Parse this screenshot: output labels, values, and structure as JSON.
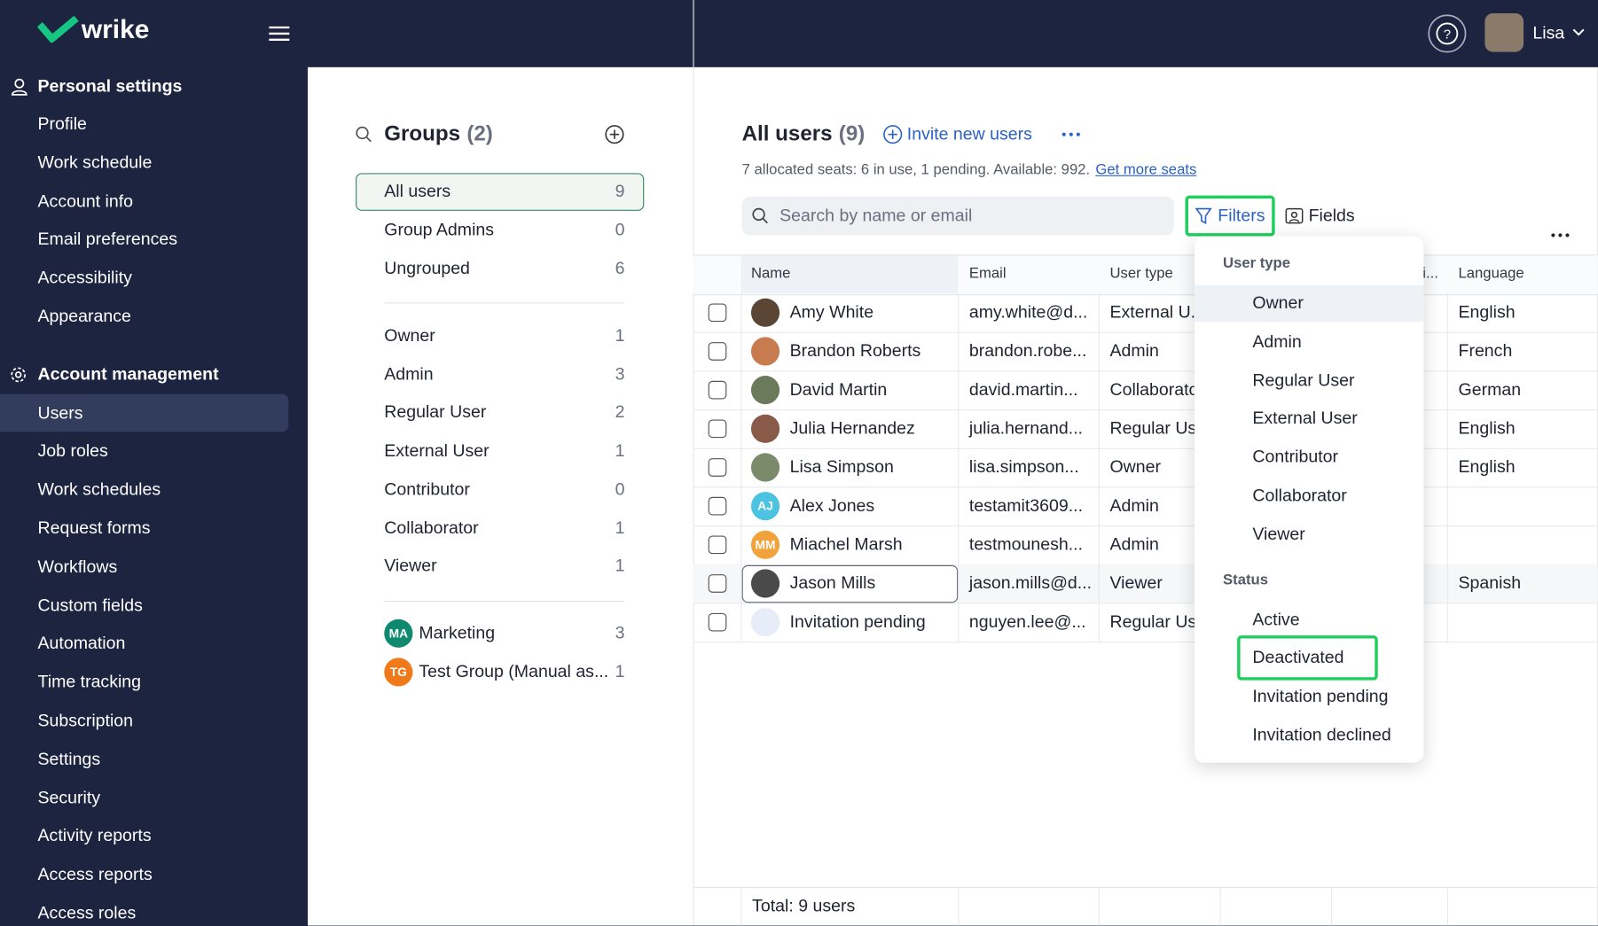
{
  "header": {
    "logo": "wrike",
    "user": "Lisa"
  },
  "sidebar": {
    "personal_title": "Personal settings",
    "personal_items": [
      "Profile",
      "Work schedule",
      "Account info",
      "Email preferences",
      "Accessibility",
      "Appearance"
    ],
    "account_title": "Account management",
    "account_items": [
      "Users",
      "Job roles",
      "Work schedules",
      "Request forms",
      "Workflows",
      "Custom fields",
      "Automation",
      "Time tracking",
      "Subscription",
      "Settings",
      "Security",
      "Activity reports",
      "Access reports",
      "Access roles"
    ]
  },
  "groups": {
    "title": "Groups",
    "count_label": "(2)",
    "main": [
      {
        "name": "All users",
        "count": 9
      },
      {
        "name": "Group Admins",
        "count": 0
      },
      {
        "name": "Ungrouped",
        "count": 6
      }
    ],
    "roles": [
      {
        "name": "Owner",
        "count": 1
      },
      {
        "name": "Admin",
        "count": 3
      },
      {
        "name": "Regular User",
        "count": 2
      },
      {
        "name": "External User",
        "count": 1
      },
      {
        "name": "Contributor",
        "count": 0
      },
      {
        "name": "Collaborator",
        "count": 1
      },
      {
        "name": "Viewer",
        "count": 1
      }
    ],
    "teams": [
      {
        "initials": "MA",
        "name": "Marketing",
        "count": 3,
        "color": "#0f8a6e"
      },
      {
        "initials": "TG",
        "name": "Test Group (Manual as...",
        "count": 1,
        "color": "#f07a1a"
      }
    ]
  },
  "users": {
    "title": "All users",
    "count_label": "(9)",
    "invite": "Invite new users",
    "seats": "7 allocated seats: 6 in use, 1 pending. Available: 992.",
    "seats_link": "Get more seats",
    "search_placeholder": "Search by name or email",
    "filters": "Filters",
    "fields": "Fields",
    "columns": [
      "Name",
      "Email",
      "User type",
      "i...",
      "Language"
    ],
    "rows": [
      {
        "name": "Amy White",
        "email": "amy.white@d...",
        "type": "External U.",
        "language": "English",
        "avatar_color": "#5b4636"
      },
      {
        "name": "Brandon Roberts",
        "email": "brandon.robe...",
        "type": "Admin",
        "language": "French",
        "avatar_color": "#c97b50"
      },
      {
        "name": "David Martin",
        "email": "david.martin...",
        "type": "Collaborator",
        "language": "German",
        "avatar_color": "#6b7a5a"
      },
      {
        "name": "Julia Hernandez",
        "email": "julia.hernand...",
        "type": "Regular User",
        "language": "English",
        "avatar_color": "#8a5a48"
      },
      {
        "name": "Lisa Simpson",
        "email": "lisa.simpson...",
        "type": "Owner",
        "language": "English",
        "avatar_color": "#7a8a6a"
      },
      {
        "name": "Alex Jones",
        "initials": "AJ",
        "email": "testamit3609...",
        "type": "Admin",
        "language": null,
        "avatar_color": "#4cc3e0"
      },
      {
        "name": "Miachel Marsh",
        "initials": "MM",
        "email": "testmounesh...",
        "type": "Admin",
        "language": null,
        "avatar_color": "#f2a23a"
      },
      {
        "name": "Jason Mills",
        "email": "jason.mills@d...",
        "type": "Viewer",
        "language": "Spanish",
        "avatar_color": "#4a4a4a"
      },
      {
        "name": "Invitation pending",
        "email": "nguyen.lee@...",
        "type": "Regular User",
        "language": null,
        "avatar_color": "#e6edf9"
      }
    ],
    "total": "Total: 9 users"
  },
  "dropdown": {
    "sections": [
      {
        "title": "User type",
        "items": [
          "Owner",
          "Admin",
          "Regular User",
          "External User",
          "Contributor",
          "Collaborator",
          "Viewer"
        ]
      },
      {
        "title": "Status",
        "items": [
          "Active",
          "Deactivated",
          "Invitation pending",
          "Invitation declined"
        ]
      }
    ]
  }
}
